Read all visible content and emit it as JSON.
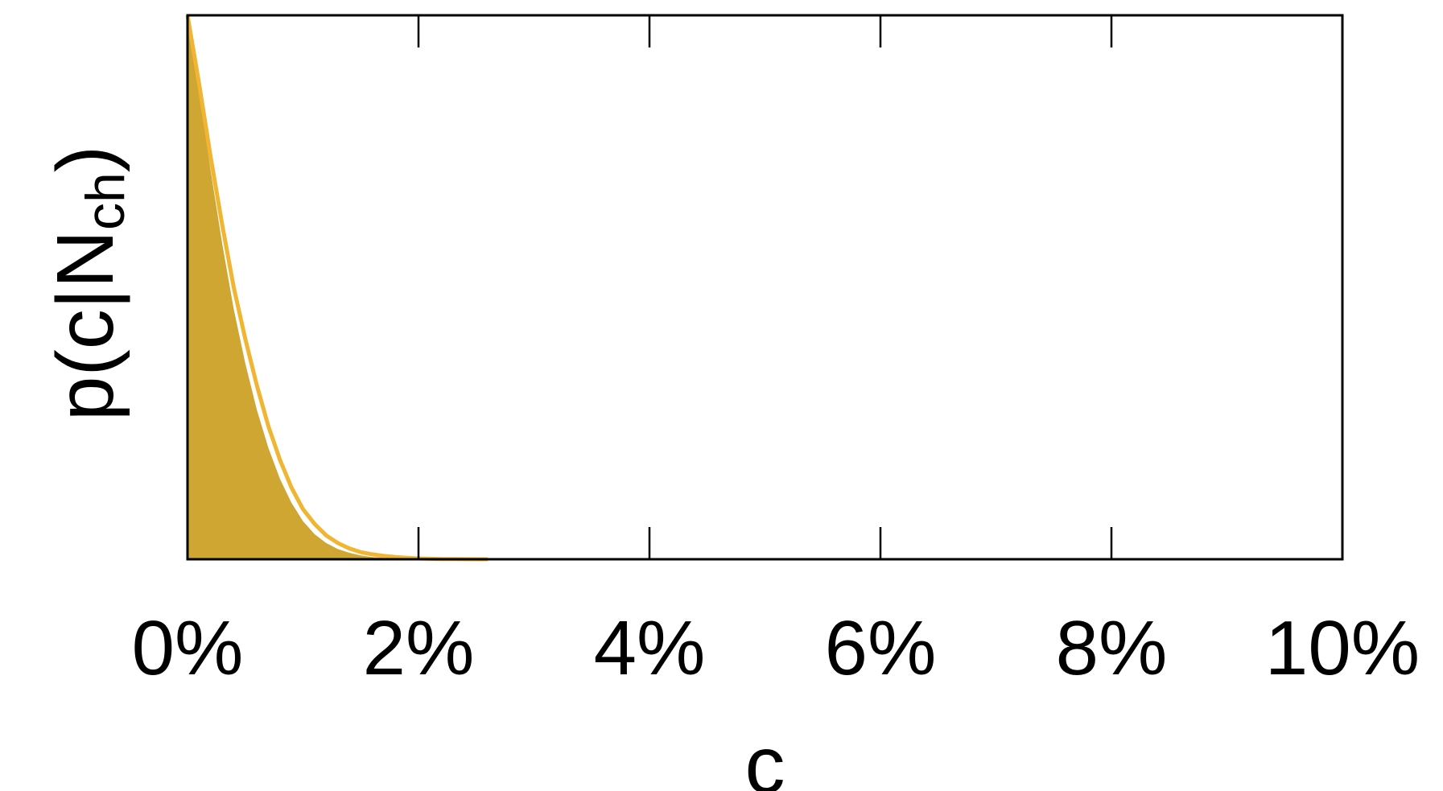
{
  "chart_data": {
    "type": "area",
    "xlabel": "c",
    "ylabel": {
      "main": "p(c|N",
      "sub": "ch",
      "close": ")"
    },
    "x_ticks": [
      "0%",
      "2%",
      "4%",
      "6%",
      "8%",
      "10%"
    ],
    "xlim": [
      0,
      10
    ],
    "ylim": [
      0,
      1
    ],
    "y_ticks_shown": false,
    "grid": false,
    "colors": {
      "fill": "#cfa632",
      "line": "#efb533",
      "axis": "#000000"
    },
    "series": [
      {
        "x": [
          0,
          0.1,
          0.2,
          0.3,
          0.4,
          0.5,
          0.6,
          0.7,
          0.8,
          0.9,
          1.0,
          1.1,
          1.2,
          1.3,
          1.4,
          1.5,
          1.6,
          1.7,
          1.8,
          1.9,
          2.0,
          2.1,
          2.2,
          2.3,
          2.4,
          2.5,
          2.6
        ],
        "y_line": [
          1.0,
          0.875,
          0.74,
          0.615,
          0.5,
          0.405,
          0.32,
          0.245,
          0.183,
          0.132,
          0.092,
          0.065,
          0.044,
          0.03,
          0.02,
          0.013,
          0.009,
          0.006,
          0.004,
          0.0025,
          0.0015,
          0.0009,
          0.0005,
          0.0003,
          0.00015,
          7e-05,
          0.0
        ],
        "y_fill": [
          1.0,
          0.86,
          0.715,
          0.58,
          0.46,
          0.36,
          0.275,
          0.205,
          0.148,
          0.104,
          0.07,
          0.046,
          0.03,
          0.019,
          0.012,
          0.007,
          0.004,
          0.0025,
          0.0015,
          0.0008,
          0.0004,
          0.0002,
          0.0001,
          5e-05,
          2e-05,
          0.0,
          0.0
        ]
      }
    ]
  }
}
